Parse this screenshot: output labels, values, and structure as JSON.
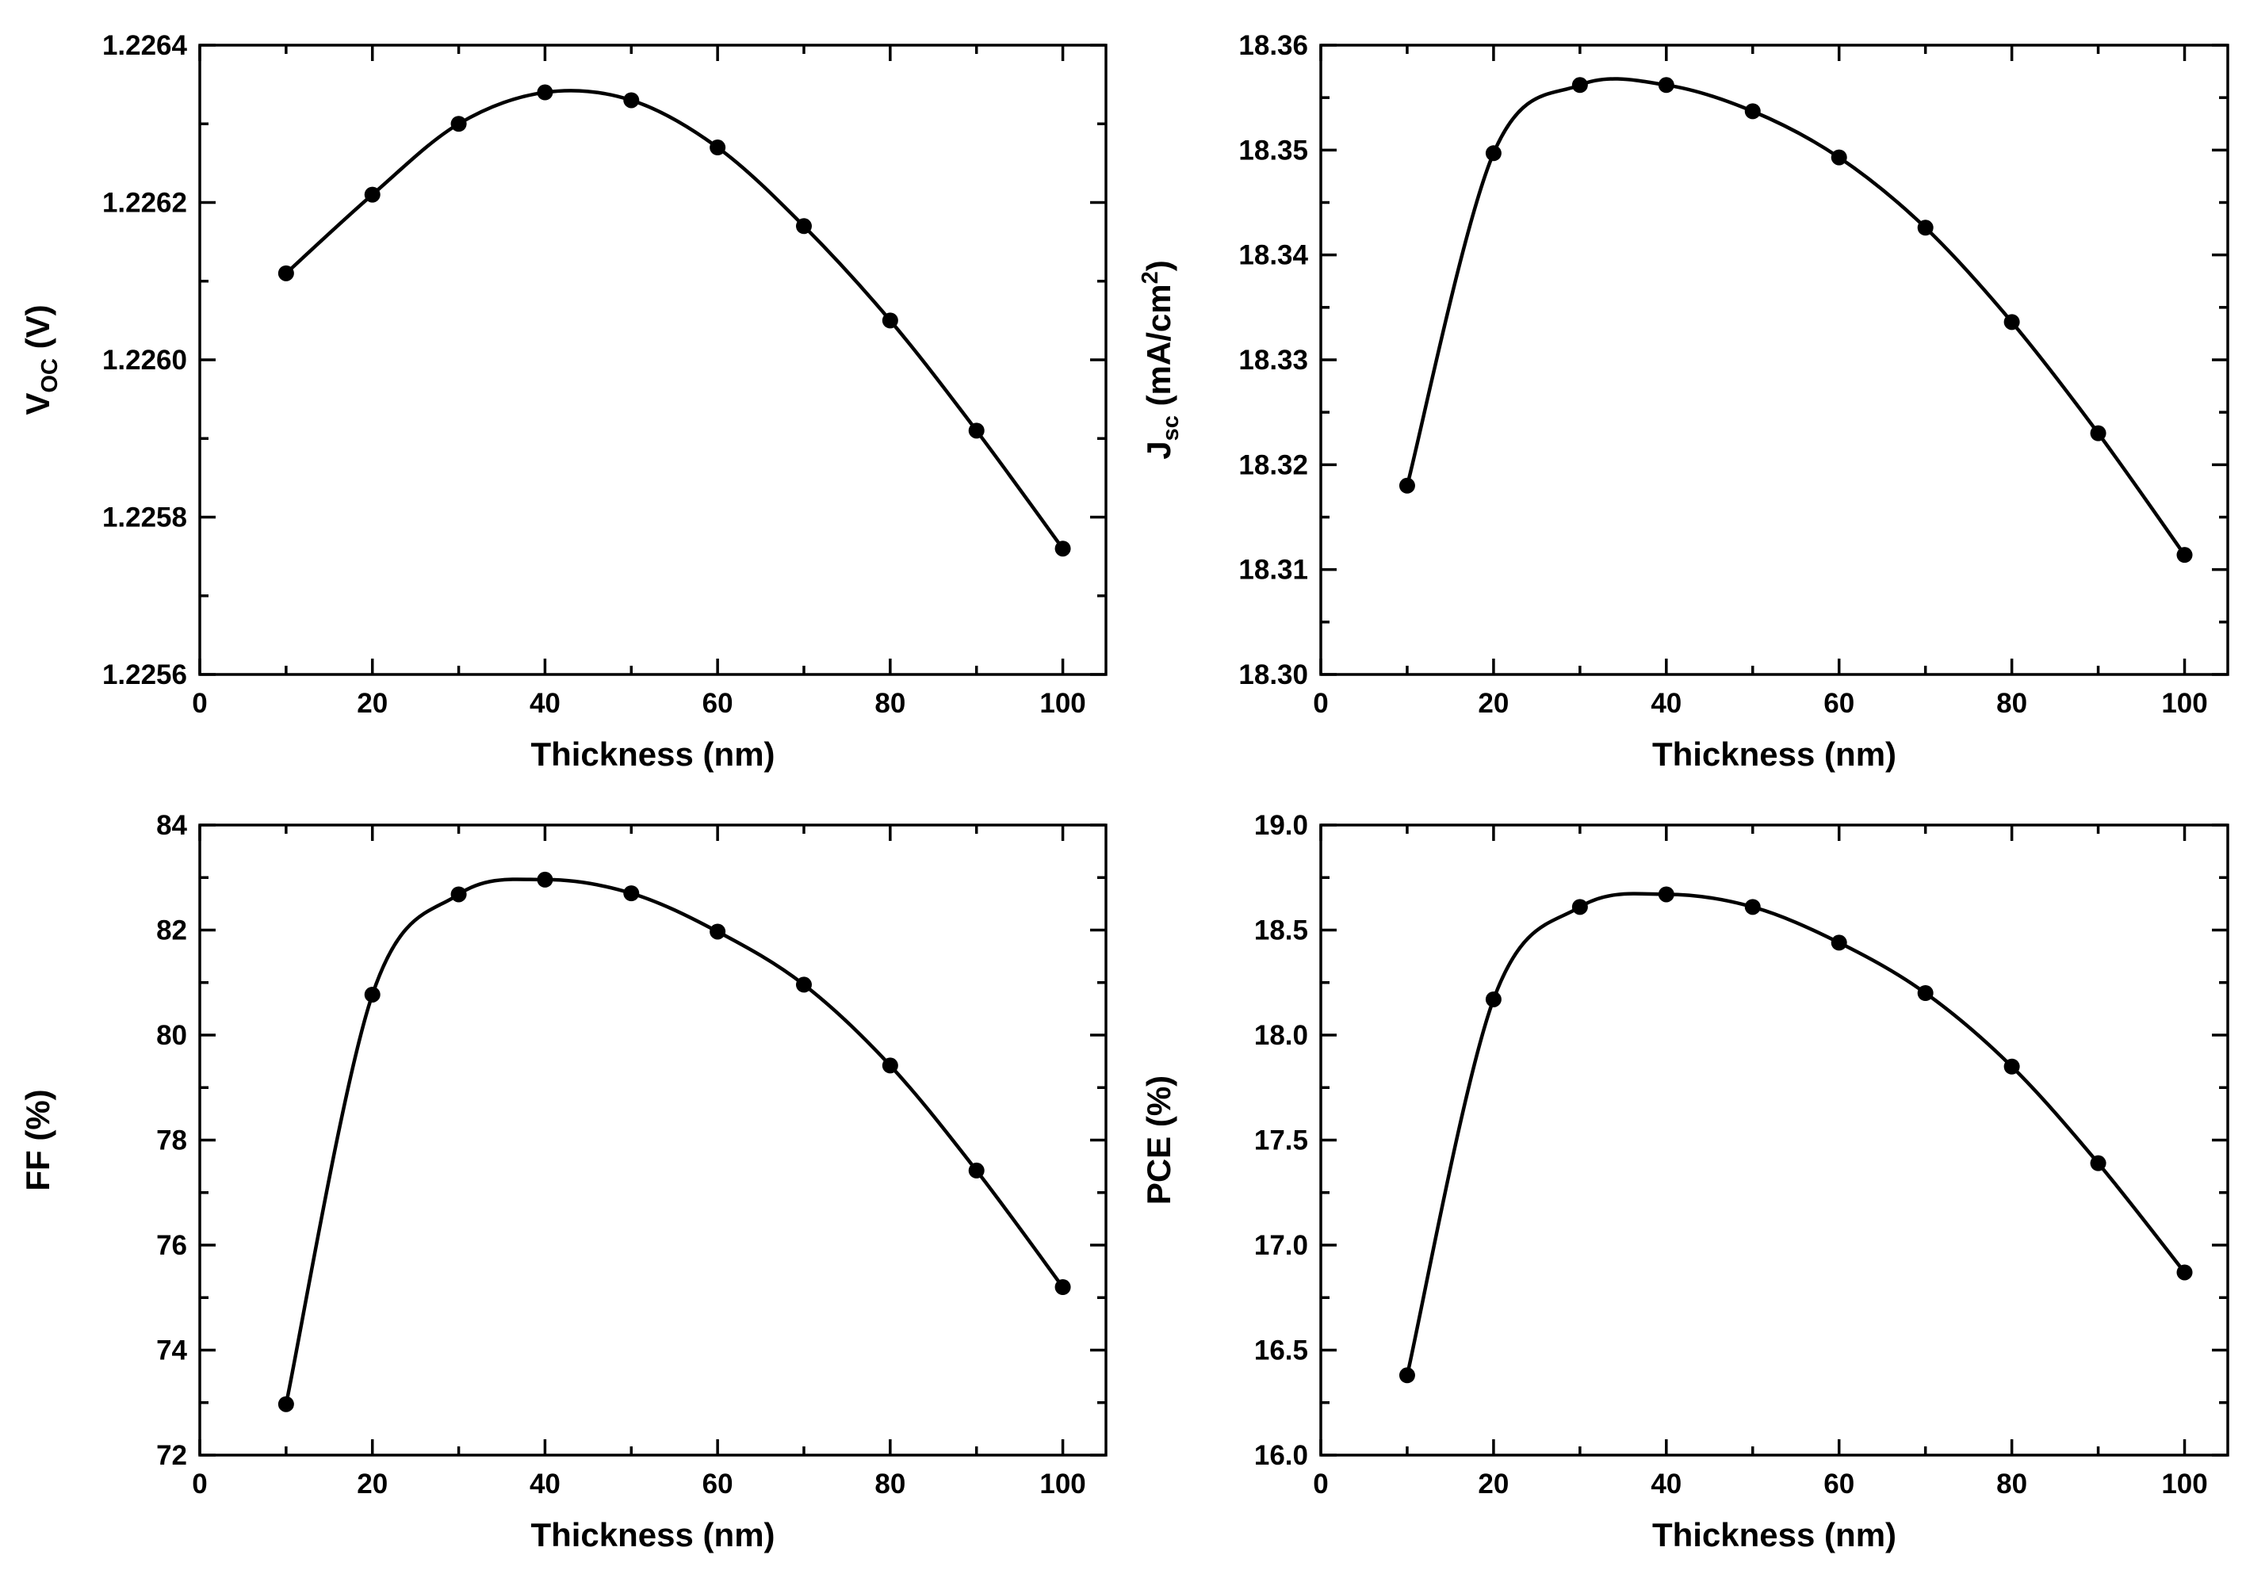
{
  "chart_data": [
    {
      "id": "voc",
      "type": "line",
      "title": "",
      "xlabel": "Thickness (nm)",
      "ylabel": {
        "main": "V",
        "sub": "OC",
        "sup": "",
        "rest": " (V)"
      },
      "xlim": [
        0,
        105
      ],
      "ylim": [
        1.2256,
        1.2264
      ],
      "xticks": [
        0,
        20,
        40,
        60,
        80,
        100
      ],
      "xtick_labels": [
        "0",
        "20",
        "40",
        "60",
        "80",
        "100"
      ],
      "yticks": [
        1.2256,
        1.2258,
        1.226,
        1.2262,
        1.2264
      ],
      "ytick_labels": [
        "1.2256",
        "1.2258",
        "1.2260",
        "1.2262",
        "1.2264"
      ],
      "x": [
        10,
        20,
        30,
        40,
        50,
        60,
        70,
        80,
        90,
        100
      ],
      "values": [
        1.22611,
        1.22621,
        1.2263,
        1.22634,
        1.22633,
        1.22627,
        1.22617,
        1.22605,
        1.22591,
        1.22576
      ],
      "series_color": "#000000"
    },
    {
      "id": "jsc",
      "type": "line",
      "title": "",
      "xlabel": "Thickness (nm)",
      "ylabel": {
        "main": "J",
        "sub": "sc",
        "sup": "2",
        "pre_sup": " (mA/cm",
        "rest": ")"
      },
      "xlim": [
        0,
        105
      ],
      "ylim": [
        18.3,
        18.36
      ],
      "xticks": [
        0,
        20,
        40,
        60,
        80,
        100
      ],
      "xtick_labels": [
        "0",
        "20",
        "40",
        "60",
        "80",
        "100"
      ],
      "yticks": [
        18.3,
        18.31,
        18.32,
        18.33,
        18.34,
        18.35,
        18.36
      ],
      "ytick_labels": [
        "18.30",
        "18.31",
        "18.32",
        "18.33",
        "18.34",
        "18.35",
        "18.36"
      ],
      "x": [
        10,
        20,
        30,
        40,
        50,
        60,
        70,
        80,
        90,
        100
      ],
      "values": [
        18.318,
        18.3497,
        18.3562,
        18.3562,
        18.3537,
        18.3493,
        18.3426,
        18.3336,
        18.323,
        18.3114
      ],
      "series_color": "#000000"
    },
    {
      "id": "ff",
      "type": "line",
      "title": "",
      "xlabel": "Thickness (nm)",
      "ylabel": {
        "main": "FF (%)",
        "sub": "",
        "sup": "",
        "rest": ""
      },
      "xlim": [
        0,
        105
      ],
      "ylim": [
        72,
        84
      ],
      "xticks": [
        0,
        20,
        40,
        60,
        80,
        100
      ],
      "xtick_labels": [
        "0",
        "20",
        "40",
        "60",
        "80",
        "100"
      ],
      "yticks": [
        72,
        74,
        76,
        78,
        80,
        82,
        84
      ],
      "ytick_labels": [
        "72",
        "74",
        "76",
        "78",
        "80",
        "82",
        "84"
      ],
      "x": [
        10,
        20,
        30,
        40,
        50,
        60,
        70,
        80,
        90,
        100
      ],
      "values": [
        72.97,
        80.77,
        82.68,
        82.96,
        82.7,
        81.97,
        80.96,
        79.42,
        77.42,
        75.2
      ],
      "series_color": "#000000"
    },
    {
      "id": "pce",
      "type": "line",
      "title": "",
      "xlabel": "Thickness (nm)",
      "ylabel": {
        "main": "PCE (%)",
        "sub": "",
        "sup": "",
        "rest": ""
      },
      "xlim": [
        0,
        105
      ],
      "ylim": [
        16.0,
        19.0
      ],
      "xticks": [
        0,
        20,
        40,
        60,
        80,
        100
      ],
      "xtick_labels": [
        "0",
        "20",
        "40",
        "60",
        "80",
        "100"
      ],
      "yticks": [
        16.0,
        16.5,
        17.0,
        17.5,
        18.0,
        18.5,
        19.0
      ],
      "ytick_labels": [
        "16.0",
        "16.5",
        "17.0",
        "17.5",
        "18.0",
        "18.5",
        "19.0"
      ],
      "x": [
        10,
        20,
        30,
        40,
        50,
        60,
        70,
        80,
        90,
        100
      ],
      "values": [
        16.38,
        18.17,
        18.61,
        18.67,
        18.61,
        18.44,
        18.2,
        17.85,
        17.39,
        16.87
      ],
      "series_color": "#000000"
    }
  ]
}
